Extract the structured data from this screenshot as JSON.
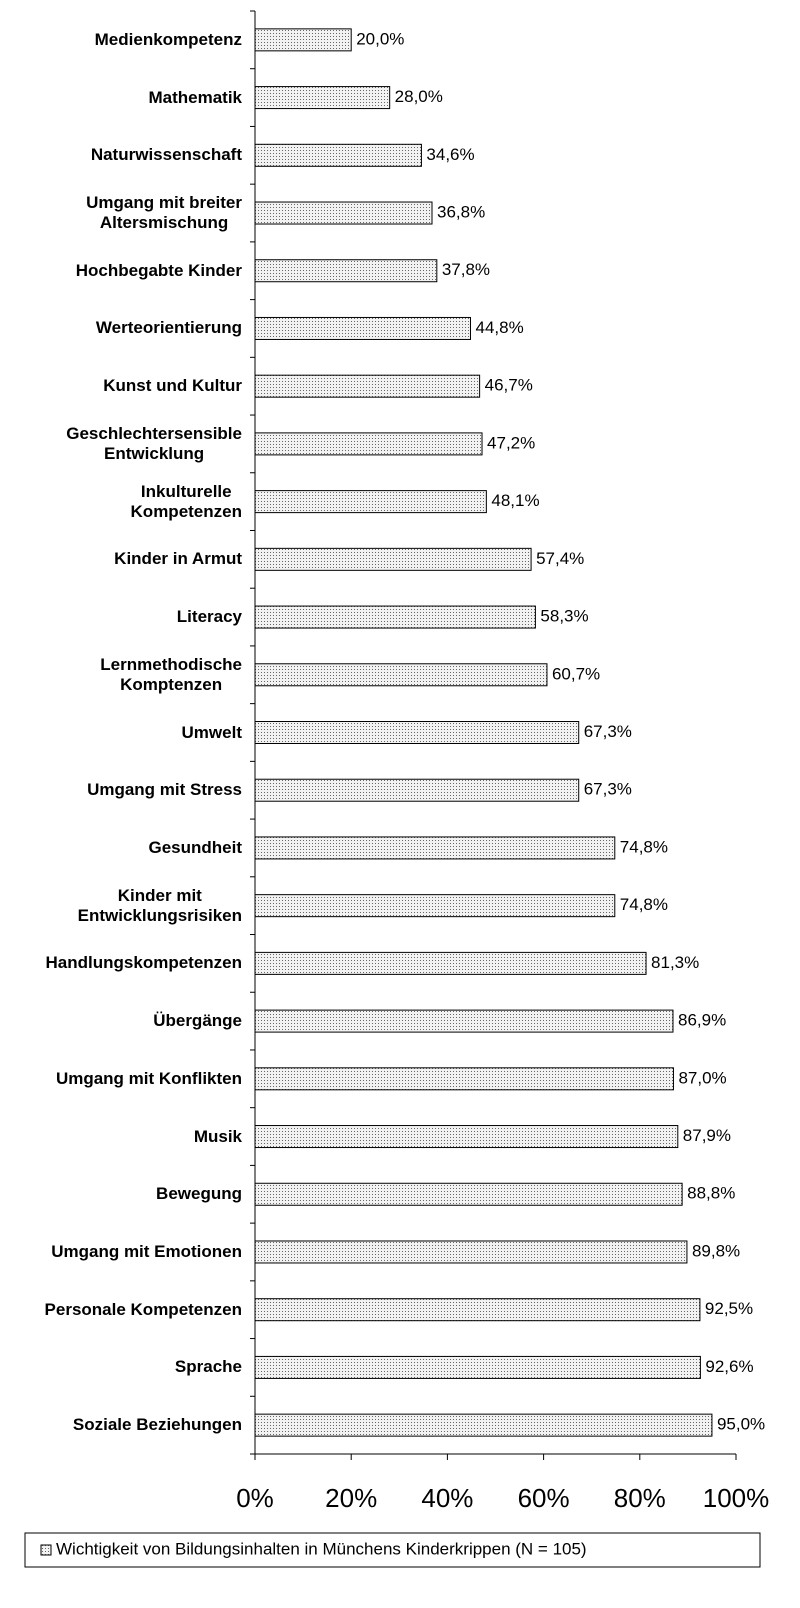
{
  "chart_data": {
    "type": "bar",
    "orientation": "horizontal",
    "categories": [
      "Medienkompetenz",
      "Mathematik",
      "Naturwissenschaft",
      "Umgang mit breiter\nAltersmischung",
      "Hochbegabte Kinder",
      "Werteorientierung",
      "Kunst und Kultur",
      "Geschlechtersensible\nEntwicklung",
      "Inkulturelle\nKompetenzen",
      "Kinder in Armut",
      "Literacy",
      "Lernmethodische\nKomptenzen",
      "Umwelt",
      "Umgang mit Stress",
      "Gesundheit",
      "Kinder mit\nEntwicklungsrisiken",
      "Handlungskompetenzen",
      "Übergänge",
      "Umgang mit Konflikten",
      "Musik",
      "Bewegung",
      "Umgang mit Emotionen",
      "Personale Kompetenzen",
      "Sprache",
      "Soziale Beziehungen"
    ],
    "series": [
      {
        "name": "Wichtigkeit von Bildungsinhalten in Münchens Kinderkrippen (N = 105)",
        "color": "#d9d9d9",
        "values": [
          20.0,
          28.0,
          34.6,
          36.8,
          37.8,
          44.8,
          46.7,
          47.2,
          48.1,
          57.4,
          58.3,
          60.7,
          67.3,
          67.3,
          74.8,
          74.8,
          81.3,
          86.9,
          87.0,
          87.9,
          88.8,
          89.8,
          92.5,
          92.6,
          95.0
        ],
        "value_labels": [
          "20,0%",
          "28,0%",
          "34,6%",
          "36,8%",
          "37,8%",
          "44,8%",
          "46,7%",
          "47,2%",
          "48,1%",
          "57,4%",
          "58,3%",
          "60,7%",
          "67,3%",
          "67,3%",
          "74,8%",
          "74,8%",
          "81,3%",
          "86,9%",
          "87,0%",
          "87,9%",
          "88,8%",
          "89,8%",
          "92,5%",
          "92,6%",
          "95,0%"
        ]
      }
    ],
    "xlim": [
      0,
      100
    ],
    "xticks": [
      {
        "value": 0,
        "label": "0%"
      },
      {
        "value": 20,
        "label": "20%"
      },
      {
        "value": 40,
        "label": "40%"
      },
      {
        "value": 60,
        "label": "60%"
      },
      {
        "value": 80,
        "label": "80%"
      },
      {
        "value": 100,
        "label": "100%"
      }
    ],
    "legend": "bottom"
  }
}
